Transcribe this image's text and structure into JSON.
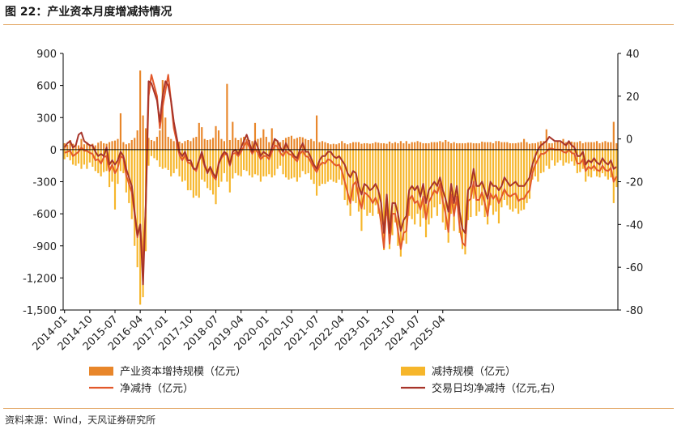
{
  "figure": {
    "title": "图 22：产业资本月度增减持情况",
    "source": "资料来源：Wind，天风证券研究所"
  },
  "colors": {
    "increase": "#E8862A",
    "decrease": "#F6B62B",
    "net": "#E2582B",
    "daily": "#A7342A",
    "axis": "#000000",
    "rule": "#E1A15A"
  },
  "chart_data": {
    "type": "bar",
    "title": "",
    "xlabel": "",
    "ylabel": "亿元",
    "ylim": [
      -1500,
      900
    ],
    "y2lim": [
      -80,
      40
    ],
    "yticks": [
      "900",
      "600",
      "300",
      "0",
      "-300",
      "-600",
      "-900",
      "-1,200",
      "-1,500"
    ],
    "y2ticks": [
      "40",
      "20",
      "0",
      "-20",
      "-40",
      "-60",
      "-80"
    ],
    "x_labels": [
      "2014-01",
      "2014-10",
      "2015-07",
      "2016-04",
      "2017-01",
      "2017-10",
      "2018-07",
      "2019-04",
      "2020-01",
      "2020-10",
      "2021-07",
      "2022-04",
      "2023-01",
      "2023-10",
      "2024-07",
      "2025-04"
    ],
    "legend": {
      "increase": "产业资本增持规模（亿元）",
      "decrease": "减持规模（亿元）",
      "net": "净减持（亿元）",
      "daily": "交易日均净减持（亿元,右）"
    },
    "start_period": "2014-01",
    "end_period": "2025-06",
    "series": [
      {
        "name": "产业资本增持规模（亿元）",
        "axis": "left",
        "values": [
          60,
          45,
          90,
          55,
          50,
          40,
          100,
          50,
          70,
          45,
          55,
          40,
          65,
          80,
          60,
          55,
          70,
          80,
          85,
          100,
          340,
          70,
          50,
          60,
          90,
          110,
          180,
          740,
          320,
          200,
          110,
          90,
          80,
          120,
          180,
          650,
          300,
          120,
          100,
          80,
          70,
          75,
          60,
          80,
          90,
          80,
          110,
          120,
          250,
          210,
          100,
          90,
          95,
          110,
          220,
          180,
          100,
          80,
          615,
          90,
          260,
          110,
          90,
          110,
          120,
          100,
          90,
          80,
          250,
          100,
          110,
          190,
          120,
          70,
          200,
          105,
          80,
          70,
          90,
          110,
          120,
          130,
          100,
          110,
          120,
          115,
          100,
          90,
          100,
          80,
          320,
          70,
          80,
          70,
          60,
          50,
          55,
          50,
          60,
          80,
          60,
          50,
          60,
          70,
          70,
          70,
          55,
          60,
          60,
          55,
          60,
          70,
          65,
          60,
          60,
          55,
          75,
          60,
          70,
          60,
          80,
          60,
          80,
          55,
          70,
          70,
          80,
          70,
          60,
          60,
          60,
          70,
          70,
          70,
          80,
          70,
          90,
          75,
          60,
          70,
          60,
          60,
          60,
          60,
          65,
          65,
          60,
          60,
          60,
          75,
          70,
          70,
          70,
          60,
          80,
          80,
          70,
          70,
          70,
          60,
          60,
          60,
          65,
          70,
          100,
          70,
          55,
          60,
          60,
          70,
          80,
          80,
          190,
          60,
          60,
          70,
          80,
          70,
          100,
          70,
          70,
          75,
          70,
          70,
          80,
          60,
          70,
          70,
          70,
          70,
          80,
          60,
          70,
          80,
          70,
          70,
          260,
          60
        ]
      },
      {
        "name": "减持规模（亿元）",
        "axis": "left",
        "values": [
          -90,
          -70,
          -100,
          -140,
          -150,
          -130,
          -180,
          -140,
          -180,
          -120,
          -160,
          -200,
          -220,
          -250,
          -210,
          -200,
          -350,
          -300,
          -560,
          -320,
          -200,
          -220,
          -400,
          -500,
          -650,
          -900,
          -1100,
          -1450,
          -1380,
          -950,
          -150,
          -60,
          -80,
          -100,
          -160,
          -180,
          -170,
          -190,
          -250,
          -220,
          -180,
          -250,
          -300,
          -290,
          -380,
          -380,
          -450,
          -430,
          -450,
          -280,
          -300,
          -360,
          -380,
          -420,
          -510,
          -350,
          -300,
          -220,
          -300,
          -400,
          -270,
          -220,
          -240,
          -250,
          -190,
          -200,
          -240,
          -260,
          -230,
          -240,
          -300,
          -250,
          -250,
          -230,
          -260,
          -240,
          -180,
          -150,
          -230,
          -260,
          -280,
          -270,
          -260,
          -300,
          -260,
          -200,
          -230,
          -220,
          -280,
          -320,
          -430,
          -340,
          -320,
          -320,
          -300,
          -280,
          -300,
          -310,
          -280,
          -330,
          -470,
          -520,
          -620,
          -480,
          -500,
          -580,
          -760,
          -560,
          -620,
          -590,
          -620,
          -520,
          -600,
          -700,
          -940,
          -620,
          -930,
          -800,
          -680,
          -900,
          -1000,
          -850,
          -880,
          -620,
          -650,
          -700,
          -600,
          -720,
          -640,
          -820,
          -700,
          -640,
          -540,
          -620,
          -510,
          -680,
          -750,
          -870,
          -600,
          -760,
          -520,
          -780,
          -930,
          -980,
          -660,
          -630,
          -460,
          -620,
          -580,
          -520,
          -630,
          -700,
          -520,
          -610,
          -580,
          -690,
          -540,
          -470,
          -520,
          -560,
          -580,
          -550,
          -600,
          -570,
          -560,
          -500,
          -460,
          -280,
          -250,
          -300,
          -220,
          -210,
          -150,
          -180,
          -100,
          -150,
          -120,
          -100,
          -150,
          -120,
          -130,
          -110,
          -150,
          -220,
          -210,
          -180,
          -300,
          -250,
          -260,
          -200,
          -250,
          -260,
          -220,
          -250,
          -280,
          -260,
          -500,
          -350
        ]
      },
      {
        "name": "净减持（亿元）",
        "axis": "left",
        "values": [
          -30,
          -20,
          -10,
          -60,
          -40,
          -20,
          20,
          -10,
          -10,
          -30,
          -40,
          -100,
          -90,
          -130,
          -70,
          -60,
          -200,
          -140,
          -220,
          -170,
          -60,
          -80,
          -240,
          -320,
          -400,
          -600,
          -820,
          -700,
          -1100,
          -520,
          500,
          700,
          600,
          500,
          200,
          400,
          550,
          700,
          450,
          200,
          80,
          -50,
          -100,
          -50,
          -120,
          -130,
          -170,
          -200,
          -100,
          -50,
          -160,
          -200,
          -170,
          -250,
          -280,
          -120,
          -80,
          -40,
          -50,
          -150,
          -40,
          -30,
          -60,
          -20,
          30,
          80,
          20,
          -40,
          10,
          -30,
          -90,
          -60,
          -60,
          -90,
          -20,
          40,
          30,
          -30,
          -60,
          -10,
          -40,
          -50,
          -80,
          -110,
          -40,
          -10,
          -60,
          -70,
          -120,
          -170,
          -210,
          -150,
          -120,
          -130,
          -90,
          -100,
          -130,
          -150,
          -140,
          -200,
          -300,
          -400,
          -500,
          -330,
          -300,
          -450,
          -550,
          -400,
          -420,
          -450,
          -500,
          -450,
          -520,
          -690,
          -920,
          -480,
          -880,
          -600,
          -600,
          -760,
          -930,
          -780,
          -760,
          -470,
          -430,
          -500,
          -480,
          -560,
          -440,
          -650,
          -490,
          -440,
          -380,
          -410,
          -320,
          -480,
          -600,
          -770,
          -420,
          -620,
          -440,
          -720,
          -870,
          -900,
          -480,
          -460,
          -300,
          -470,
          -470,
          -400,
          -500,
          -620,
          -410,
          -460,
          -420,
          -500,
          -440,
          -370,
          -420,
          -440,
          -420,
          -410,
          -480,
          -460,
          -460,
          -410,
          -380,
          -220,
          -140,
          -90,
          -40,
          -40,
          -20,
          10,
          10,
          0,
          0,
          0,
          -20,
          -30,
          0,
          -30,
          -40,
          -130,
          -130,
          -90,
          -200,
          -160,
          -180,
          -150,
          -190,
          -200,
          -150,
          -190,
          -200,
          -170,
          -300,
          -250
        ]
      },
      {
        "name": "交易日均净减持（亿元,右）",
        "axis": "right",
        "values": [
          -4,
          -2,
          -1,
          -4,
          -3,
          2,
          3,
          -1,
          -2,
          -3,
          -3,
          -6,
          -8,
          -7,
          -8,
          -4,
          -12,
          -10,
          -12,
          -10,
          -6,
          -8,
          -14,
          -18,
          -22,
          -34,
          -45,
          -40,
          -68,
          -30,
          27,
          26,
          22,
          18,
          8,
          20,
          27,
          25,
          18,
          8,
          1,
          -6,
          -8,
          -6,
          -10,
          -10,
          -14,
          -14,
          -10,
          -6,
          -12,
          -16,
          -13,
          -16,
          -18,
          -12,
          -8,
          -6,
          -7,
          -12,
          -6,
          -5,
          -7,
          -4,
          -1,
          2,
          -2,
          -6,
          -1,
          -4,
          -8,
          -6,
          -7,
          -8,
          -4,
          0,
          -1,
          -4,
          -6,
          -2,
          -5,
          -6,
          -8,
          -9,
          -5,
          -2,
          -6,
          -6,
          -9,
          -12,
          -14,
          -10,
          -8,
          -8,
          -6,
          -6,
          -8,
          -9,
          -8,
          -10,
          -12,
          -16,
          -18,
          -15,
          -16,
          -22,
          -26,
          -21,
          -22,
          -24,
          -23,
          -21,
          -24,
          -30,
          -44,
          -26,
          -44,
          -30,
          -30,
          -35,
          -43,
          -38,
          -36,
          -24,
          -22,
          -24,
          -22,
          -27,
          -21,
          -30,
          -24,
          -22,
          -20,
          -22,
          -18,
          -24,
          -28,
          -34,
          -21,
          -30,
          -22,
          -34,
          -42,
          -44,
          -24,
          -22,
          -14,
          -22,
          -22,
          -20,
          -24,
          -28,
          -20,
          -22,
          -22,
          -24,
          -22,
          -18,
          -20,
          -22,
          -21,
          -20,
          -22,
          -22,
          -22,
          -20,
          -18,
          -12,
          -8,
          -5,
          -3,
          -2,
          -1,
          1,
          0,
          -1,
          -1,
          -1,
          -2,
          -3,
          -1,
          -3,
          -4,
          -8,
          -8,
          -6,
          -12,
          -10,
          -11,
          -9,
          -11,
          -12,
          -9,
          -11,
          -12,
          -10,
          -14,
          -13
        ]
      }
    ]
  }
}
